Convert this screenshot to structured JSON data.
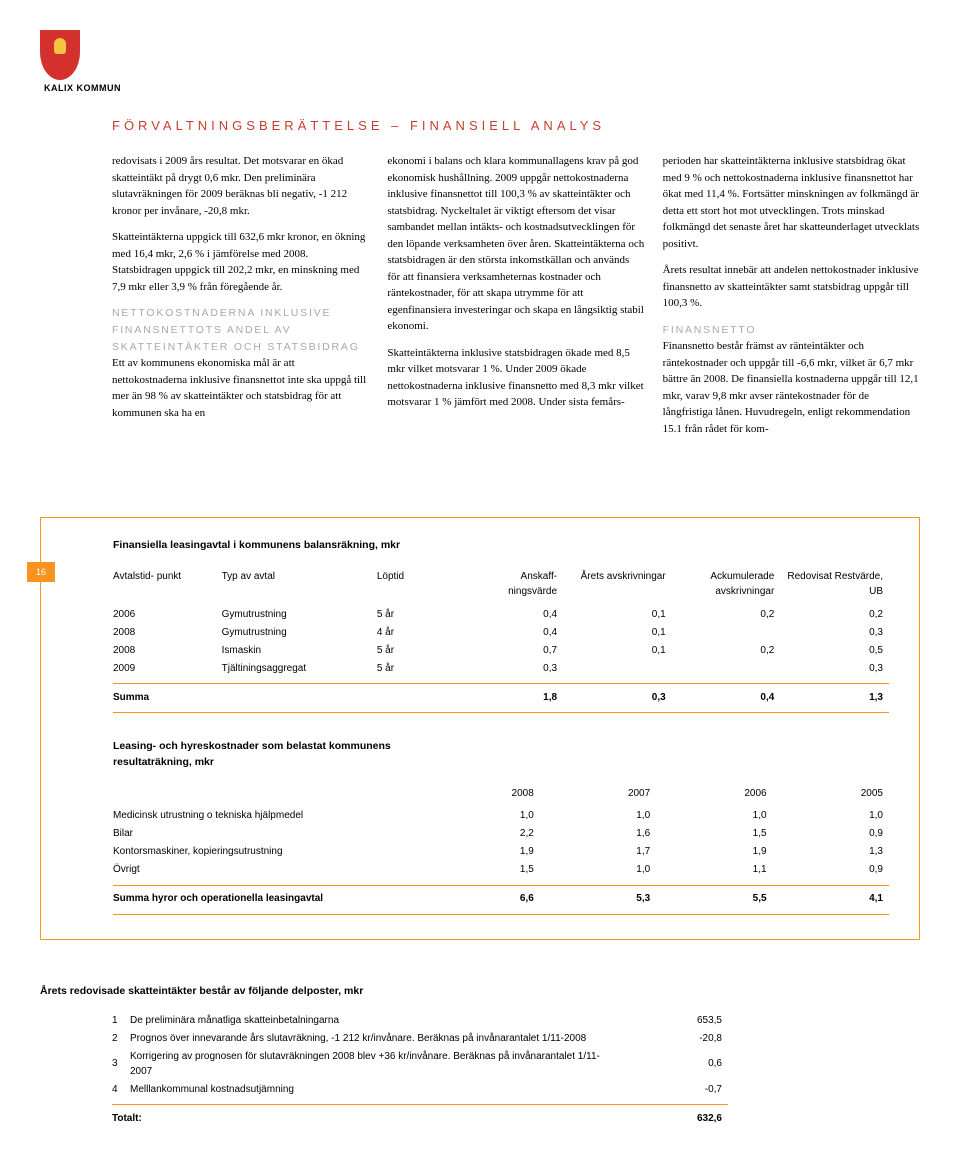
{
  "brand": "KALIX KOMMUN",
  "pageNumber": "16",
  "sectionTitle": "FÖRVALTNINGSBERÄTTELSE – FINANSIELL ANALYS",
  "body": {
    "col1": {
      "p1": "redovisats i 2009 års resultat. Det motsvarar en ökad skatteintäkt på drygt 0,6 mkr. Den preliminära slutavräkningen för 2009 beräknas bli negativ, -1 212 kronor per invånare, -20,8 mkr.",
      "p2": "Skatteintäkterna uppgick till 632,6 mkr kronor, en ökning med 16,4 mkr, 2,6 % i jämförelse med 2008. Statsbidragen uppgick till 202,2 mkr, en minskning med 7,9 mkr eller 3,9 % från föregående år.",
      "h1": "NETTOKOSTNADERNA INKLUSIVE FINANSNETTOTS ANDEL AV SKATTEINTÄKTER OCH STATSBIDRAG",
      "p3": "Ett av kommunens ekonomiska mål är att nettokostnaderna inklusive finansnettot inte ska uppgå till mer än 98 % av skatteintäkter och statsbidrag för att kommunen ska ha en"
    },
    "col2": {
      "p1": "ekonomi i balans och klara kommunallagens krav på god ekonomisk hushållning. 2009 uppgår nettokostnaderna inklusive finansnettot till 100,3 % av skatteintäkter och statsbidrag. Nyckeltalet är viktigt eftersom det visar sambandet mellan intäkts- och kostnadsutvecklingen för den löpande verksamheten över åren. Skatteintäkterna och statsbidragen är den största inkomstkällan och används för att finansiera verksamheternas kostnader och räntekostnader, för att skapa utrymme för att egenfinansiera investeringar och skapa en långsiktig stabil ekonomi.",
      "p2": "Skatteintäkterna inklusive statsbidragen ökade med 8,5 mkr vilket motsvarar 1 %. Under 2009 ökade nettokostnaderna inklusive finansnetto med 8,3 mkr vilket motsvarar 1 % jämfört med 2008. Under sista femårs-"
    },
    "col3": {
      "p1": "perioden har skatteintäkterna inklusive statsbidrag ökat med 9 % och nettokostnaderna inklusive finansnettot har ökat med 11,4 %. Fortsätter minskningen av folkmängd är detta ett stort hot mot utvecklingen. Trots minskad folkmängd det senaste året har skatteunderlaget utvecklats positivt.",
      "p2": "Årets resultat innebär att andelen nettokostnader inklusive finansnetto av skatteintäkter samt statsbidrag uppgår till 100,3 %.",
      "h1": "FINANSNETTO",
      "p3": "Finansnetto består främst av ränteintäkter och räntekostnader och uppgår till -6,6 mkr, vilket är 6,7 mkr bättre än 2008. De finansiella kostnaderna uppgår till 12,1 mkr, varav 9,8 mkr avser räntekostnader för de långfristiga lånen. Huvudregeln, enligt rekommendation 15.1 från rådet för kom-"
    }
  },
  "table1": {
    "title": "Finansiella leasingavtal i kommunens balansräkning, mkr",
    "headers": [
      "Avtalstid-\npunkt",
      "Typ av avtal",
      "Löptid",
      "Anskaff-\nningsvärde",
      "Årets\navskrivningar",
      "Ackumulerade\navskrivningar",
      "Redovisat\nRestvärde, UB"
    ],
    "rows": [
      [
        "2006",
        "Gymutrustning",
        "5 år",
        "0,4",
        "0,1",
        "0,2",
        "0,2"
      ],
      [
        "2008",
        "Gymutrustning",
        "4 år",
        "0,4",
        "0,1",
        "",
        "0,3"
      ],
      [
        "2008",
        "Ismaskin",
        "5 år",
        "0,7",
        "0,1",
        "0,2",
        "0,5"
      ],
      [
        "2009",
        "Tjältiningsaggregat",
        "5 år",
        "0,3",
        "",
        "",
        "0,3"
      ]
    ],
    "sum": [
      "Summa",
      "",
      "",
      "1,8",
      "0,3",
      "0,4",
      "1,3"
    ]
  },
  "table2": {
    "title": "Leasing- och hyreskostnader som belastat kommunens resultaträkning, mkr",
    "headers": [
      "",
      "2008",
      "2007",
      "2006",
      "2005"
    ],
    "rows": [
      [
        "Medicinsk utrustning o tekniska hjälpmedel",
        "1,0",
        "1,0",
        "1,0",
        "1,0"
      ],
      [
        "Bilar",
        "2,2",
        "1,6",
        "1,5",
        "0,9"
      ],
      [
        "Kontorsmaskiner, kopieringsutrustning",
        "1,9",
        "1,7",
        "1,9",
        "1,3"
      ],
      [
        "Övrigt",
        "1,5",
        "1,0",
        "1,1",
        "0,9"
      ]
    ],
    "sum": [
      "Summa hyror och operationella leasingavtal",
      "6,6",
      "5,3",
      "5,5",
      "4,1"
    ]
  },
  "table3": {
    "title": "Årets redovisade skatteintäkter består av följande delposter, mkr",
    "rows": [
      [
        "1",
        "De preliminära månatliga skatteinbetalningarna",
        "653,5"
      ],
      [
        "2",
        "Prognos över innevarande års slutavräkning, -1 212 kr/invånare. Beräknas på invånarantalet 1/11-2008",
        "-20,8"
      ],
      [
        "3",
        "Korrigering av prognosen för slutavräkningen 2008 blev +36 kr/invånare. Beräknas på invånarantalet 1/11-2007",
        "0,6"
      ],
      [
        "4",
        "Melllankommunal kostnadsutjämning",
        "-0,7"
      ]
    ],
    "total": [
      "Totalt:",
      "",
      "632,6"
    ]
  }
}
